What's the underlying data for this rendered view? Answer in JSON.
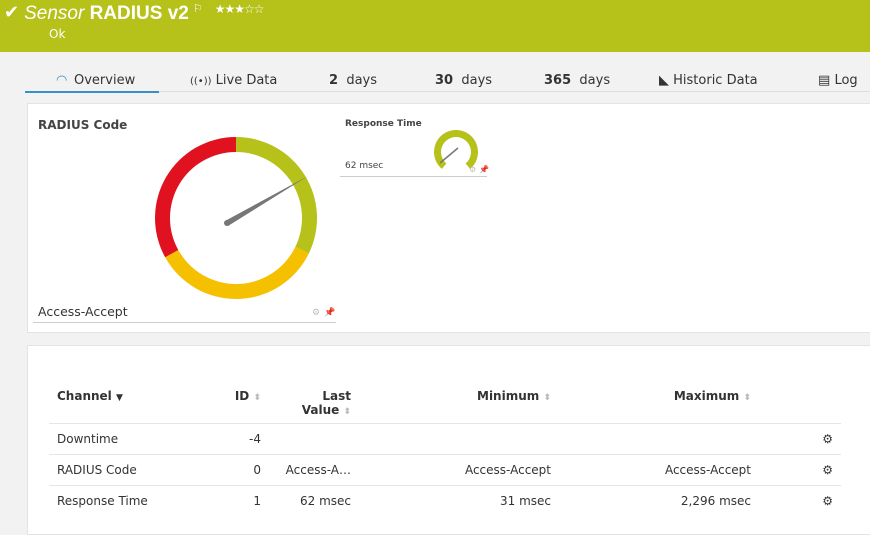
{
  "header": {
    "title_prefix": "Sensor",
    "title_name": "RADIUS v2",
    "status": "Ok",
    "stars": "★★★☆☆",
    "rating": 3,
    "accent": "#b6c11a"
  },
  "tabs": [
    {
      "label": "Overview"
    },
    {
      "label": "Live Data"
    },
    {
      "num": "2",
      "label": "days"
    },
    {
      "num": "30",
      "label": "days"
    },
    {
      "num": "365",
      "label": "days"
    },
    {
      "label": "Historic Data"
    },
    {
      "label": "Log"
    }
  ],
  "gauges": {
    "main": {
      "title": "RADIUS Code",
      "value": "Access-Accept",
      "colors": [
        "#b6c11a",
        "#f5c000",
        "#e0121f"
      ]
    },
    "small": {
      "title": "Response Time",
      "value": "62 msec"
    }
  },
  "table": {
    "headers": {
      "channel": "Channel",
      "id": "ID",
      "last_line1": "Last",
      "last_line2": "Value",
      "minimum": "Minimum",
      "maximum": "Maximum"
    },
    "rows": [
      {
        "channel": "Downtime",
        "id": "-4",
        "last": "",
        "min": "",
        "max": ""
      },
      {
        "channel": "RADIUS Code",
        "id": "0",
        "last": "Access-A…",
        "min": "Access-Accept",
        "max": "Access-Accept"
      },
      {
        "channel": "Response Time",
        "id": "1",
        "last": "62 msec",
        "min": "31 msec",
        "max": "2,296 msec"
      }
    ]
  }
}
